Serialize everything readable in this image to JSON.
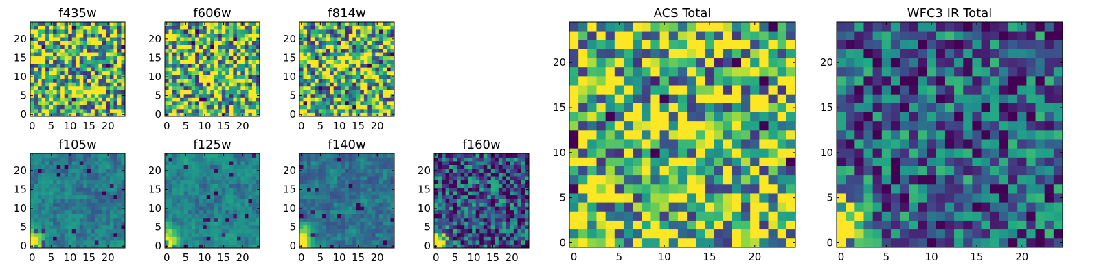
{
  "colors": {
    "colormap": "viridis",
    "frame": "#000000",
    "background": "#ffffff"
  },
  "chart_data": [
    {
      "type": "heatmap",
      "title": "f435w",
      "x_ticks": [
        0,
        5,
        10,
        15,
        20
      ],
      "y_ticks": [
        0,
        5,
        10,
        15,
        20
      ],
      "xlim": [
        0,
        25
      ],
      "ylim": [
        0,
        25
      ],
      "grid_size": [
        25,
        25
      ],
      "colormap": "viridis",
      "mean_level": 0.72,
      "variance": "high",
      "bright_corner": "bottom-left",
      "corner_strength": 0.1
    },
    {
      "type": "heatmap",
      "title": "f606w",
      "x_ticks": [
        0,
        5,
        10,
        15,
        20
      ],
      "y_ticks": [
        0,
        5,
        10,
        15,
        20
      ],
      "xlim": [
        0,
        25
      ],
      "ylim": [
        0,
        25
      ],
      "grid_size": [
        25,
        25
      ],
      "colormap": "viridis",
      "mean_level": 0.7,
      "variance": "high",
      "bright_corner": "bottom-left",
      "corner_strength": 0.3
    },
    {
      "type": "heatmap",
      "title": "f814w",
      "x_ticks": [
        0,
        5,
        10,
        15,
        20
      ],
      "y_ticks": [
        0,
        5,
        10,
        15,
        20
      ],
      "xlim": [
        0,
        25
      ],
      "ylim": [
        0,
        25
      ],
      "grid_size": [
        25,
        25
      ],
      "colormap": "viridis",
      "mean_level": 0.68,
      "variance": "high",
      "bright_corner": "bottom-left",
      "corner_strength": 0.4
    },
    {
      "type": "heatmap",
      "title": "f105w",
      "x_ticks": [
        0,
        5,
        10,
        15,
        20
      ],
      "y_ticks": [
        0,
        5,
        10,
        15,
        20
      ],
      "xlim": [
        0,
        25
      ],
      "ylim": [
        0,
        25
      ],
      "grid_size": [
        25,
        25
      ],
      "colormap": "viridis",
      "mean_level": 0.45,
      "variance": "low",
      "bright_corner": "bottom-left",
      "corner_strength": 0.9
    },
    {
      "type": "heatmap",
      "title": "f125w",
      "x_ticks": [
        0,
        5,
        10,
        15,
        20
      ],
      "y_ticks": [
        0,
        5,
        10,
        15,
        20
      ],
      "xlim": [
        0,
        25
      ],
      "ylim": [
        0,
        25
      ],
      "grid_size": [
        25,
        25
      ],
      "colormap": "viridis",
      "mean_level": 0.48,
      "variance": "low",
      "bright_corner": "bottom-left",
      "corner_strength": 0.9
    },
    {
      "type": "heatmap",
      "title": "f140w",
      "x_ticks": [
        0,
        5,
        10,
        15,
        20
      ],
      "y_ticks": [
        0,
        5,
        10,
        15,
        20
      ],
      "xlim": [
        0,
        25
      ],
      "ylim": [
        0,
        25
      ],
      "grid_size": [
        25,
        25
      ],
      "colormap": "viridis",
      "mean_level": 0.42,
      "variance": "low",
      "bright_corner": "bottom-left",
      "corner_strength": 0.9
    },
    {
      "type": "heatmap",
      "title": "f160w",
      "x_ticks": [
        0,
        5,
        10,
        15,
        20
      ],
      "y_ticks": [
        0,
        5,
        10,
        15,
        20
      ],
      "xlim": [
        0,
        25
      ],
      "ylim": [
        0,
        25
      ],
      "grid_size": [
        25,
        25
      ],
      "colormap": "viridis",
      "mean_level": 0.3,
      "variance": "medium",
      "bright_corner": "bottom-left",
      "corner_strength": 1.0
    },
    {
      "type": "heatmap",
      "title": "ACS Total",
      "x_ticks": [
        0,
        5,
        10,
        15,
        20
      ],
      "y_ticks": [
        0,
        5,
        10,
        15,
        20
      ],
      "xlim": [
        0,
        25
      ],
      "ylim": [
        0,
        25
      ],
      "grid_size": [
        25,
        25
      ],
      "colormap": "viridis",
      "mean_level": 0.74,
      "variance": "high",
      "bright_corner": "bottom-left",
      "corner_strength": 0.35
    },
    {
      "type": "heatmap",
      "title": "WFC3 IR Total",
      "x_ticks": [
        0,
        5,
        10,
        15,
        20
      ],
      "y_ticks": [
        0,
        5,
        10,
        15,
        20
      ],
      "xlim": [
        0,
        25
      ],
      "ylim": [
        0,
        25
      ],
      "grid_size": [
        25,
        25
      ],
      "colormap": "viridis",
      "mean_level": 0.35,
      "variance": "medium",
      "bright_corner": "bottom-left",
      "corner_strength": 1.0
    }
  ]
}
